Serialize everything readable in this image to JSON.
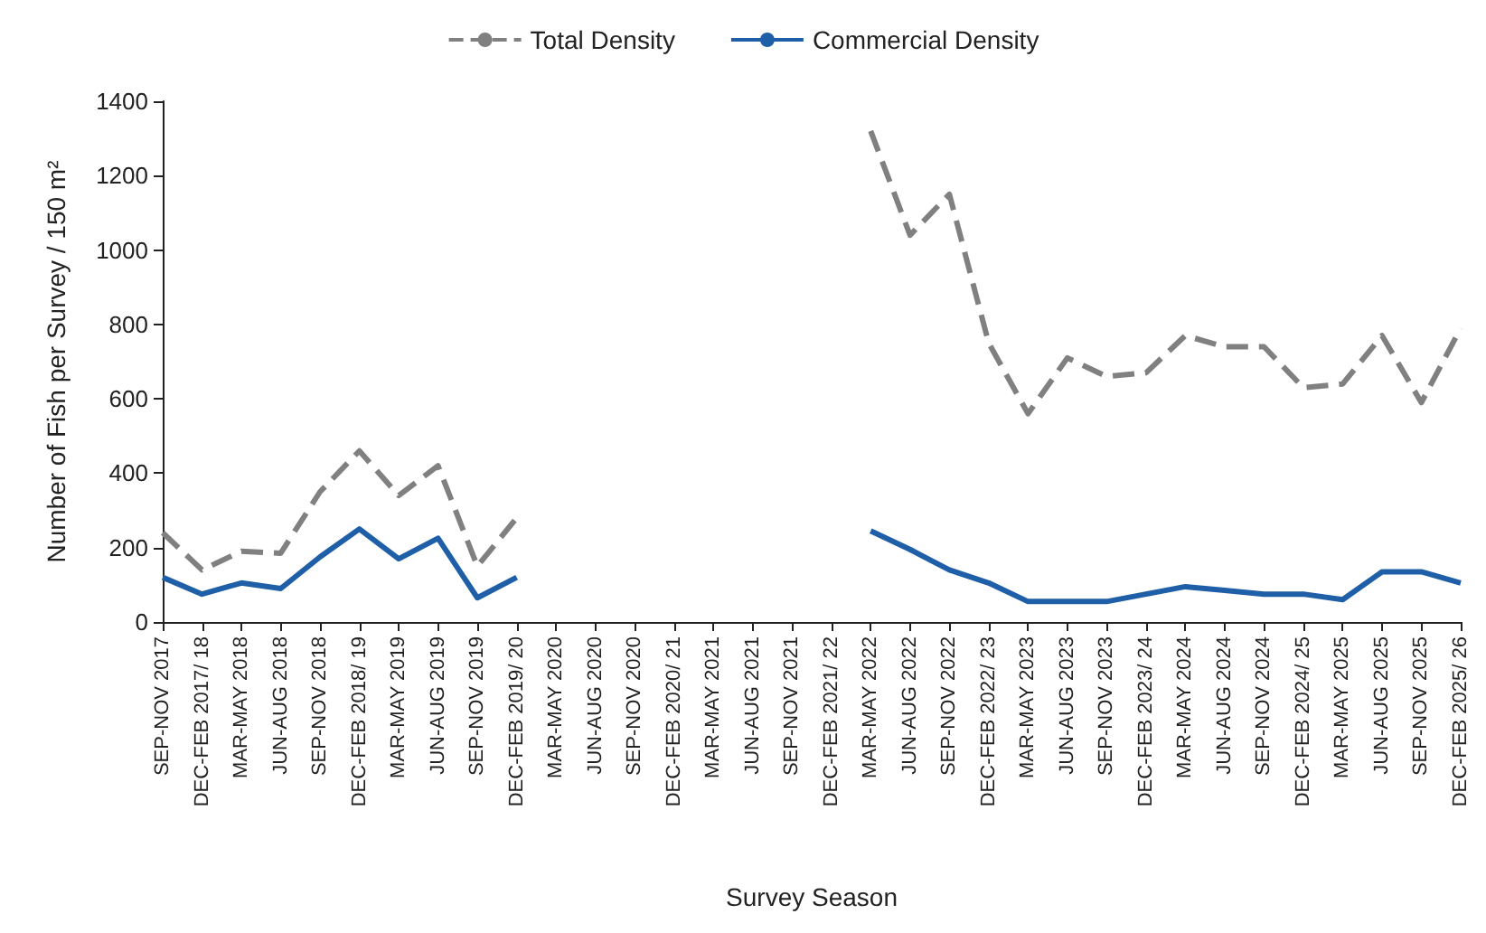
{
  "chart_data": {
    "type": "line",
    "xlabel": "Survey Season",
    "ylabel": "Number of Fish per Survey / 150 m²",
    "categories": [
      "SEP-NOV 2017",
      "DEC-FEB 2017/ 18",
      "MAR-MAY 2018",
      "JUN-AUG 2018",
      "SEP-NOV 2018",
      "DEC-FEB 2018/ 19",
      "MAR-MAY 2019",
      "JUN-AUG 2019",
      "SEP-NOV 2019",
      "DEC-FEB 2019/ 20",
      "MAR-MAY 2020",
      "JUN-AUG 2020",
      "SEP-NOV 2020",
      "DEC-FEB 2020/ 21",
      "MAR-MAY 2021",
      "JUN-AUG 2021",
      "SEP-NOV 2021",
      "DEC-FEB 2021/ 22",
      "MAR-MAY 2022",
      "JUN-AUG 2022",
      "SEP-NOV 2022",
      "DEC-FEB 2022/ 23",
      "MAR-MAY 2023",
      "JUN-AUG 2023",
      "SEP-NOV 2023",
      "DEC-FEB 2023/ 24",
      "MAR-MAY 2024",
      "JUN-AUG 2024",
      "SEP-NOV 2024",
      "DEC-FEB 2024/ 25",
      "MAR-MAY 2025",
      "JUN-AUG 2025",
      "SEP-NOV 2025",
      "DEC-FEB 2025/ 26"
    ],
    "series": [
      {
        "name": "Total Density",
        "color": "#808080",
        "line_style": "dashed",
        "values": [
          240,
          140,
          190,
          185,
          350,
          460,
          340,
          420,
          150,
          280,
          null,
          null,
          null,
          null,
          null,
          null,
          null,
          null,
          1320,
          1040,
          1150,
          750,
          560,
          710,
          660,
          670,
          770,
          740,
          740,
          630,
          640,
          770,
          590,
          790
        ]
      },
      {
        "name": "Commercial Density",
        "color": "#1f5fa8",
        "line_style": "solid",
        "values": [
          120,
          75,
          105,
          90,
          175,
          250,
          170,
          225,
          65,
          120,
          null,
          null,
          null,
          null,
          null,
          null,
          null,
          null,
          245,
          195,
          140,
          105,
          55,
          55,
          55,
          75,
          95,
          85,
          75,
          75,
          60,
          135,
          135,
          105
        ]
      }
    ],
    "ylim": [
      0,
      1400
    ],
    "yticks": [
      0,
      200,
      400,
      600,
      800,
      1000,
      1200,
      1400
    ],
    "grid": false,
    "legend": "top",
    "marker": "none"
  }
}
